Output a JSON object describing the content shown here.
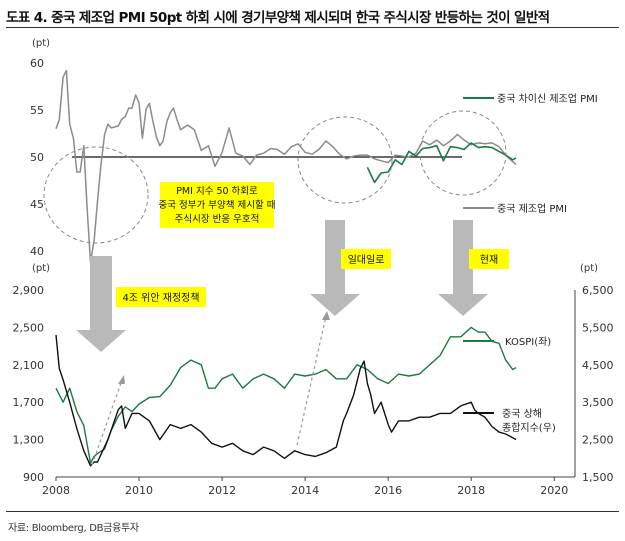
{
  "header": {
    "title": "도표 4. 중국 제조업 PMI 50pt 하회 시에 경기부양책 제시되며 한국 주식시장 반등하는 것이 일반적"
  },
  "footer": {
    "source": "자료: Bloomberg, DB금융투자"
  },
  "colors": {
    "green": "#1b7a45",
    "grey": "#8c8c8c",
    "black": "#111111",
    "arrow": "#b9b9b9",
    "highlight": "#ffff00"
  },
  "chart_data": [
    {
      "type": "line",
      "unit_label": "(pt)",
      "ylim": [
        40,
        60
      ],
      "yticks": [
        "60",
        "55",
        "50",
        "45",
        "40"
      ],
      "xlim": [
        2008,
        2020.5
      ],
      "reference_line": 50,
      "series": [
        {
          "name": "중국 제조업 PMI",
          "color": "#8c8c8c",
          "x": [
            2008.0,
            2008.08,
            2008.17,
            2008.25,
            2008.33,
            2008.42,
            2008.5,
            2008.58,
            2008.67,
            2008.75,
            2008.83,
            2008.92,
            2009.0,
            2009.08,
            2009.17,
            2009.25,
            2009.33,
            2009.42,
            2009.5,
            2009.58,
            2009.67,
            2009.75,
            2009.83,
            2009.92,
            2010.0,
            2010.08,
            2010.17,
            2010.25,
            2010.33,
            2010.42,
            2010.5,
            2010.58,
            2010.67,
            2010.75,
            2010.83,
            2010.92,
            2011.0,
            2011.17,
            2011.33,
            2011.5,
            2011.67,
            2011.83,
            2012.0,
            2012.17,
            2012.33,
            2012.5,
            2012.67,
            2012.83,
            2013.0,
            2013.17,
            2013.33,
            2013.5,
            2013.67,
            2013.83,
            2014.0,
            2014.17,
            2014.33,
            2014.5,
            2014.67,
            2014.83,
            2015.0,
            2015.17,
            2015.33,
            2015.5,
            2015.67,
            2015.83,
            2016.0,
            2016.17,
            2016.33,
            2016.5,
            2016.67,
            2016.83,
            2017.0,
            2017.17,
            2017.33,
            2017.5,
            2017.67,
            2017.83,
            2018.0,
            2018.17,
            2018.33,
            2018.5,
            2018.67,
            2018.83,
            2019.0,
            2019.08
          ],
          "y": [
            53.0,
            54.0,
            58.5,
            59.2,
            53.5,
            52.0,
            48.4,
            48.4,
            51.2,
            44.6,
            38.8,
            41.2,
            45.3,
            49.0,
            52.4,
            53.5,
            53.1,
            53.2,
            53.3,
            54.0,
            54.3,
            55.2,
            55.2,
            56.6,
            55.8,
            52.0,
            55.1,
            55.7,
            53.9,
            52.1,
            51.2,
            51.7,
            53.8,
            54.7,
            55.2,
            53.9,
            52.9,
            53.4,
            52.9,
            50.7,
            51.2,
            49.0,
            50.5,
            53.1,
            50.4,
            50.1,
            49.2,
            50.2,
            50.4,
            50.9,
            50.8,
            50.3,
            51.1,
            51.4,
            50.5,
            50.3,
            50.8,
            51.7,
            51.1,
            50.3,
            49.8,
            50.1,
            50.2,
            50.2,
            49.8,
            49.6,
            49.4,
            50.2,
            50.1,
            50.0,
            50.4,
            51.7,
            51.3,
            51.8,
            51.2,
            51.7,
            52.4,
            51.8,
            51.3,
            51.5,
            51.4,
            51.5,
            51.1,
            50.2,
            49.5,
            49.2
          ]
        },
        {
          "name": "중국 차이신 제조업 PMI",
          "color": "#1b7a45",
          "x": [
            2015.5,
            2015.67,
            2015.83,
            2016.0,
            2016.17,
            2016.33,
            2016.5,
            2016.67,
            2016.83,
            2017.0,
            2017.17,
            2017.33,
            2017.5,
            2017.67,
            2017.83,
            2018.0,
            2018.17,
            2018.33,
            2018.5,
            2018.67,
            2018.83,
            2019.0,
            2019.08
          ],
          "y": [
            48.9,
            47.3,
            48.3,
            48.4,
            49.7,
            49.2,
            50.6,
            50.1,
            50.9,
            51.0,
            51.2,
            49.6,
            51.1,
            51.0,
            50.8,
            51.5,
            51.0,
            51.1,
            51.0,
            50.6,
            50.2,
            49.7,
            49.9
          ]
        }
      ],
      "annotations": [
        {
          "text": "PMI 지수 50 하회로"
        },
        {
          "text": "중국 정부가 부양책 제시할 때"
        },
        {
          "text": "주식시장 반응 우호적"
        }
      ]
    },
    {
      "type": "line",
      "unit_label_left": "(pt)",
      "unit_label_right": "(pt)",
      "ylim_left": [
        900,
        2900
      ],
      "ylim_right": [
        1500,
        6500
      ],
      "yticks_left": [
        "2,900",
        "2,500",
        "2,100",
        "1,700",
        "1,300",
        "900"
      ],
      "yticks_right": [
        "6,500",
        "5,500",
        "4,500",
        "3,500",
        "2,500",
        "1,500"
      ],
      "xlim": [
        2008,
        2020.5
      ],
      "xticks": [
        "2008",
        "2010",
        "2012",
        "2014",
        "2016",
        "2018",
        "2020"
      ],
      "series": [
        {
          "name": "KOSPI(좌)",
          "axis": "left",
          "color": "#1b7a45",
          "x": [
            2008.0,
            2008.17,
            2008.33,
            2008.5,
            2008.67,
            2008.83,
            2008.92,
            2009.0,
            2009.17,
            2009.33,
            2009.5,
            2009.67,
            2009.83,
            2010.0,
            2010.25,
            2010.5,
            2010.75,
            2011.0,
            2011.25,
            2011.5,
            2011.67,
            2011.83,
            2012.0,
            2012.25,
            2012.5,
            2012.75,
            2013.0,
            2013.25,
            2013.5,
            2013.75,
            2014.0,
            2014.25,
            2014.5,
            2014.75,
            2015.0,
            2015.25,
            2015.5,
            2015.75,
            2016.0,
            2016.25,
            2016.5,
            2016.75,
            2017.0,
            2017.25,
            2017.5,
            2017.75,
            2018.0,
            2018.17,
            2018.33,
            2018.5,
            2018.67,
            2018.83,
            2019.0,
            2019.08
          ],
          "y": [
            1850,
            1700,
            1850,
            1600,
            1450,
            1050,
            1120,
            1150,
            1200,
            1400,
            1550,
            1650,
            1600,
            1680,
            1750,
            1760,
            1880,
            2070,
            2150,
            2100,
            1850,
            1850,
            1950,
            2000,
            1850,
            1950,
            2000,
            1950,
            1850,
            2000,
            1980,
            2000,
            2050,
            1950,
            1950,
            2100,
            2050,
            1950,
            1900,
            2000,
            1980,
            2000,
            2100,
            2200,
            2400,
            2400,
            2500,
            2450,
            2450,
            2350,
            2330,
            2150,
            2050,
            2070
          ]
        },
        {
          "name": "중국 상해 종합지수(우)",
          "axis": "right",
          "color": "#111111",
          "x": [
            2008.0,
            2008.08,
            2008.17,
            2008.33,
            2008.5,
            2008.67,
            2008.83,
            2008.92,
            2009.0,
            2009.25,
            2009.5,
            2009.58,
            2009.67,
            2009.83,
            2010.0,
            2010.25,
            2010.5,
            2010.75,
            2011.0,
            2011.25,
            2011.5,
            2011.75,
            2012.0,
            2012.25,
            2012.5,
            2012.75,
            2013.0,
            2013.25,
            2013.5,
            2013.75,
            2014.0,
            2014.25,
            2014.5,
            2014.75,
            2014.92,
            2015.0,
            2015.17,
            2015.33,
            2015.42,
            2015.5,
            2015.58,
            2015.67,
            2015.83,
            2016.0,
            2016.08,
            2016.25,
            2016.5,
            2016.75,
            2017.0,
            2017.25,
            2017.5,
            2017.75,
            2018.0,
            2018.08,
            2018.17,
            2018.33,
            2018.5,
            2018.67,
            2018.83,
            2019.0,
            2019.08
          ],
          "y": [
            5300,
            4400,
            4100,
            3500,
            2800,
            2200,
            1800,
            1900,
            1900,
            2500,
            3300,
            3400,
            2800,
            3200,
            3200,
            3000,
            2500,
            2900,
            2800,
            2900,
            2700,
            2400,
            2300,
            2400,
            2200,
            2100,
            2300,
            2200,
            2000,
            2200,
            2100,
            2050,
            2150,
            2300,
            3000,
            3200,
            3700,
            4400,
            4600,
            4000,
            3700,
            3200,
            3500,
            2900,
            2700,
            3000,
            3000,
            3100,
            3100,
            3200,
            3200,
            3400,
            3500,
            3300,
            3200,
            3100,
            2850,
            2700,
            2650,
            2550,
            2500
          ]
        }
      ]
    }
  ],
  "callouts": {
    "box_1": "4조 위안 재정정책",
    "box_2": "일대일로",
    "box_3": "현재"
  }
}
